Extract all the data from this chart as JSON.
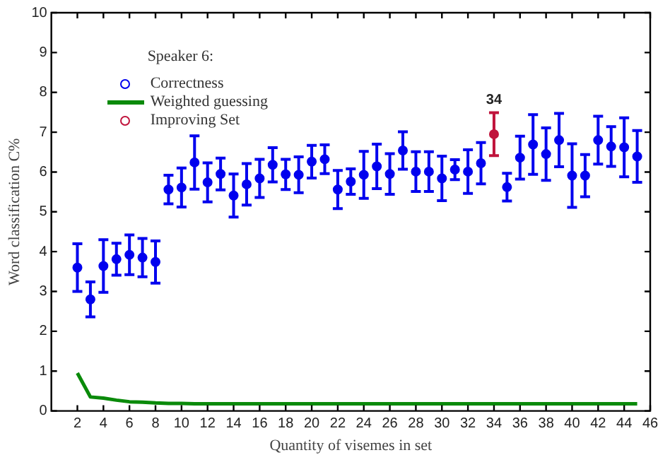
{
  "chart_data": {
    "type": "scatter",
    "xlabel": "Quantity of visemes in set",
    "ylabel": "Word classification C%",
    "legend_title": "Speaker 6:",
    "x": [
      2,
      3,
      4,
      5,
      6,
      7,
      8,
      9,
      10,
      11,
      12,
      13,
      14,
      15,
      16,
      17,
      18,
      19,
      20,
      21,
      22,
      23,
      24,
      25,
      26,
      27,
      28,
      29,
      30,
      31,
      32,
      33,
      34,
      35,
      36,
      37,
      38,
      39,
      40,
      41,
      42,
      43,
      44,
      45
    ],
    "series": [
      {
        "name": "Correctness",
        "color": "#0000ee",
        "marker": "circle",
        "values": [
          3.6,
          2.8,
          3.64,
          3.81,
          3.92,
          3.85,
          3.74,
          5.56,
          5.61,
          6.24,
          5.74,
          5.95,
          5.41,
          5.69,
          5.84,
          6.18,
          5.94,
          5.93,
          6.26,
          6.32,
          5.56,
          5.76,
          5.93,
          6.14,
          5.95,
          6.54,
          6.01,
          6.01,
          5.84,
          6.06,
          6.01,
          6.22,
          null,
          5.62,
          6.36,
          6.69,
          6.45,
          6.8,
          5.91,
          5.91,
          6.8,
          6.64,
          6.62,
          6.39
        ],
        "errors": [
          0.6,
          0.44,
          0.66,
          0.4,
          0.5,
          0.48,
          0.53,
          0.36,
          0.49,
          0.67,
          0.49,
          0.4,
          0.54,
          0.52,
          0.48,
          0.43,
          0.38,
          0.45,
          0.41,
          0.36,
          0.48,
          0.32,
          0.59,
          0.56,
          0.51,
          0.47,
          0.5,
          0.5,
          0.56,
          0.25,
          0.55,
          0.52,
          null,
          0.35,
          0.54,
          0.75,
          0.66,
          0.67,
          0.8,
          0.53,
          0.6,
          0.5,
          0.74,
          0.65
        ]
      },
      {
        "name": "Weighted guessing",
        "color": "#0a8a0a",
        "type": "line",
        "marker": "none",
        "line_style": "solid",
        "values": [
          0.95,
          0.35,
          0.32,
          0.27,
          0.23,
          0.22,
          0.2,
          0.19,
          0.19,
          0.18,
          0.18,
          0.18,
          0.18,
          0.18,
          0.18,
          0.18,
          0.18,
          0.18,
          0.18,
          0.18,
          0.18,
          0.18,
          0.18,
          0.18,
          0.18,
          0.18,
          0.18,
          0.18,
          0.18,
          0.18,
          0.18,
          0.18,
          0.18,
          0.18,
          0.18,
          0.18,
          0.18,
          0.18,
          0.18,
          0.18,
          0.18,
          0.18,
          0.18,
          0.18
        ]
      },
      {
        "name": "Improving Set",
        "color": "#c0143c",
        "marker": "circle",
        "x": [
          34
        ],
        "values": [
          6.95
        ],
        "errors": [
          0.54
        ]
      }
    ],
    "annotations": [
      {
        "text": "34",
        "x": 34,
        "y": 6.95
      }
    ],
    "xlim": [
      0,
      46
    ],
    "xticks": [
      2,
      4,
      6,
      8,
      10,
      12,
      14,
      16,
      18,
      20,
      22,
      24,
      26,
      28,
      30,
      32,
      34,
      36,
      38,
      40,
      42,
      44,
      46
    ],
    "ylim": [
      0,
      10
    ],
    "yticks": [
      0,
      1,
      2,
      3,
      4,
      5,
      6,
      7,
      8,
      9,
      10
    ],
    "grid": false,
    "legend": "top left"
  }
}
